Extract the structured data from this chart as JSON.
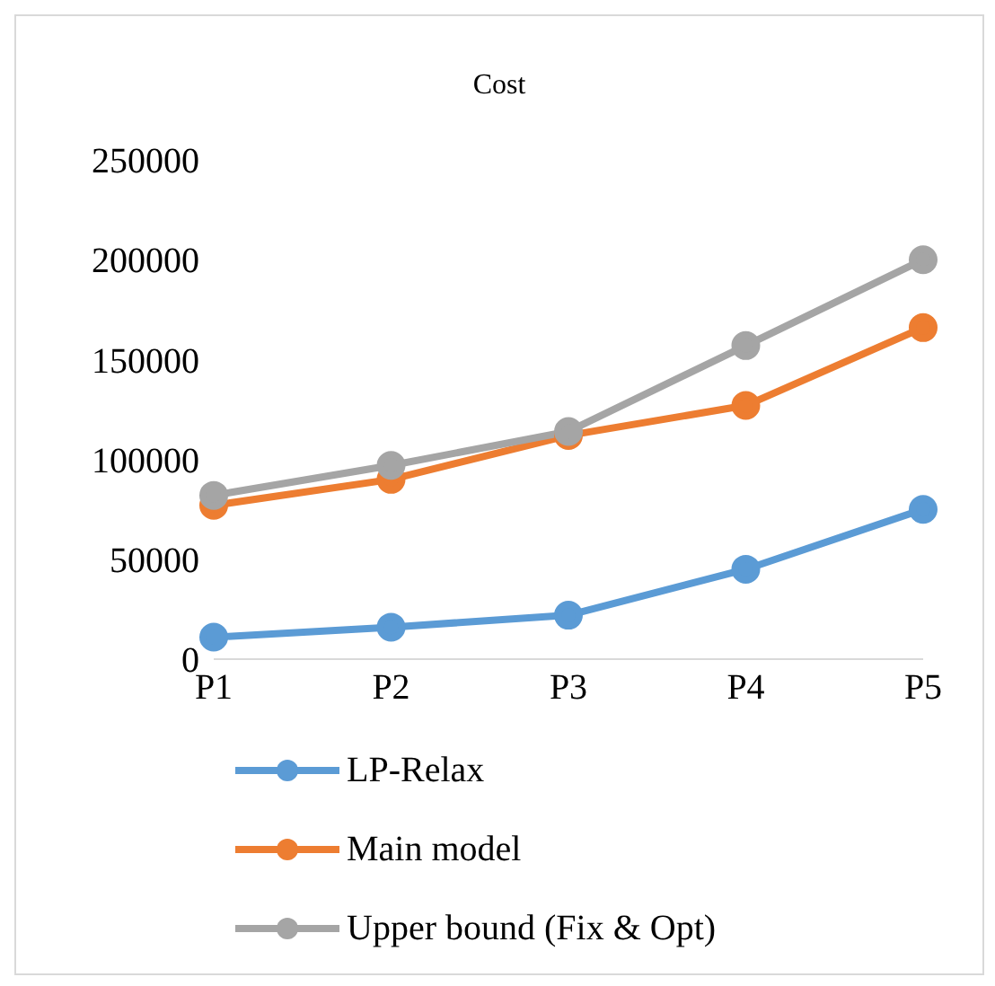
{
  "chart_data": {
    "type": "line",
    "title": "Cost",
    "categories": [
      "P1",
      "P2",
      "P3",
      "P4",
      "P5"
    ],
    "series": [
      {
        "name": "LP-Relax",
        "color": "#5b9bd5",
        "values": [
          11000,
          16000,
          22000,
          45000,
          75000
        ]
      },
      {
        "name": "Main model",
        "color": "#ed7d31",
        "values": [
          77000,
          90000,
          112000,
          127000,
          166000
        ]
      },
      {
        "name": "Upper bound (Fix & Opt)",
        "color": "#a5a5a5",
        "values": [
          82000,
          97000,
          114000,
          157000,
          200000
        ]
      }
    ],
    "ylim": [
      0,
      250000
    ],
    "yticks": [
      0,
      50000,
      100000,
      150000,
      200000,
      250000
    ],
    "grid": false,
    "legend": "bottom",
    "marker": "circle",
    "line_style": "solid"
  }
}
